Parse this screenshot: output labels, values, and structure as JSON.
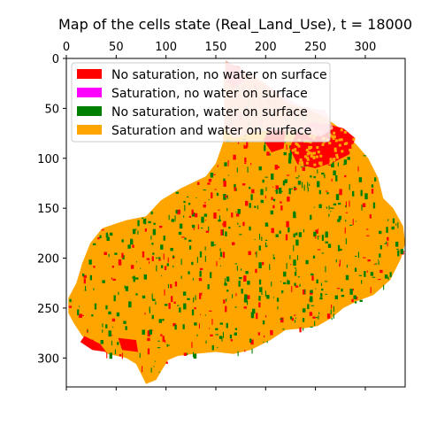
{
  "chart_data": {
    "type": "heatmap",
    "title": "Map of the cells state (Real_Land_Use),  t = 18000",
    "xlabel": "",
    "ylabel": "",
    "xlim": [
      0,
      340
    ],
    "ylim": [
      329,
      0
    ],
    "x_ticks": [
      0,
      50,
      100,
      150,
      200,
      250,
      300
    ],
    "y_ticks": [
      0,
      50,
      100,
      150,
      200,
      250,
      300
    ],
    "x_axis_position": "top",
    "grid": false,
    "legend_position": "upper-left",
    "legend": [
      {
        "label": "No saturation, no water on surface",
        "color": "#ff0000"
      },
      {
        "label": "Saturation, no water on surface",
        "color": "#ff00ff"
      },
      {
        "label": "No saturation, water on surface",
        "color": "#008000"
      },
      {
        "label": "Saturation and water on surface",
        "color": "#ffa500"
      }
    ],
    "dominant_state": "Saturation and water on surface",
    "catchment_outline": [
      [
        160,
        2
      ],
      [
        172,
        10
      ],
      [
        190,
        20
      ],
      [
        205,
        30
      ],
      [
        222,
        45
      ],
      [
        240,
        50
      ],
      [
        258,
        58
      ],
      [
        272,
        68
      ],
      [
        290,
        85
      ],
      [
        303,
        100
      ],
      [
        313,
        120
      ],
      [
        318,
        140
      ],
      [
        328,
        150
      ],
      [
        338,
        168
      ],
      [
        340,
        185
      ],
      [
        336,
        200
      ],
      [
        325,
        222
      ],
      [
        308,
        237
      ],
      [
        292,
        243
      ],
      [
        278,
        250
      ],
      [
        266,
        260
      ],
      [
        252,
        268
      ],
      [
        240,
        270
      ],
      [
        220,
        272
      ],
      [
        205,
        282
      ],
      [
        185,
        292
      ],
      [
        168,
        296
      ],
      [
        150,
        294
      ],
      [
        128,
        296
      ],
      [
        112,
        298
      ],
      [
        102,
        302
      ],
      [
        96,
        312
      ],
      [
        90,
        322
      ],
      [
        80,
        326
      ],
      [
        76,
        318
      ],
      [
        70,
        306
      ],
      [
        60,
        300
      ],
      [
        42,
        296
      ],
      [
        28,
        288
      ],
      [
        16,
        278
      ],
      [
        8,
        266
      ],
      [
        2,
        255
      ],
      [
        2,
        240
      ],
      [
        10,
        225
      ],
      [
        16,
        205
      ],
      [
        24,
        185
      ],
      [
        36,
        170
      ],
      [
        60,
        162
      ],
      [
        80,
        158
      ],
      [
        95,
        142
      ],
      [
        115,
        130
      ],
      [
        140,
        118
      ],
      [
        150,
        105
      ],
      [
        157,
        85
      ],
      [
        159,
        55
      ],
      [
        158,
        25
      ]
    ],
    "red_regions": [
      [
        [
          232,
          72
        ],
        [
          246,
          64
        ],
        [
          262,
          66
        ],
        [
          278,
          70
        ],
        [
          290,
          80
        ],
        [
          284,
          96
        ],
        [
          268,
          104
        ],
        [
          250,
          110
        ],
        [
          232,
          106
        ],
        [
          224,
          90
        ]
      ],
      [
        [
          204,
          70
        ],
        [
          220,
          72
        ],
        [
          218,
          90
        ],
        [
          206,
          94
        ],
        [
          198,
          82
        ]
      ],
      [
        [
          160,
          5
        ],
        [
          174,
          8
        ],
        [
          178,
          22
        ],
        [
          168,
          30
        ],
        [
          160,
          22
        ]
      ],
      [
        [
          18,
          278
        ],
        [
          34,
          286
        ],
        [
          40,
          294
        ],
        [
          26,
          292
        ],
        [
          14,
          284
        ]
      ],
      [
        [
          52,
          280
        ],
        [
          70,
          282
        ],
        [
          72,
          294
        ],
        [
          56,
          292
        ]
      ]
    ],
    "pink_region": [
      [
        160,
        2
      ],
      [
        190,
        18
      ],
      [
        212,
        34
      ],
      [
        236,
        48
      ],
      [
        260,
        52
      ],
      [
        268,
        70
      ],
      [
        256,
        78
      ],
      [
        232,
        74
      ],
      [
        210,
        72
      ],
      [
        188,
        74
      ],
      [
        168,
        80
      ],
      [
        158,
        70
      ],
      [
        158,
        30
      ]
    ]
  }
}
